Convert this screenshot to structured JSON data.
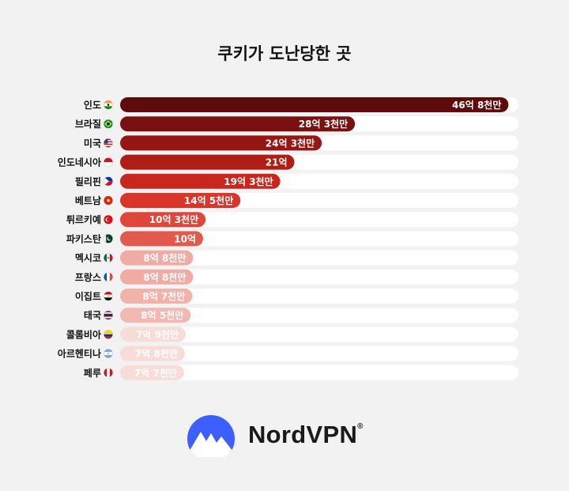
{
  "colors": {
    "track": "#ffffff",
    "background": "#f2f2f2",
    "label_light": "#ffffff",
    "brand_blue": "#3e5fff"
  },
  "chart_data": {
    "type": "bar",
    "orientation": "horizontal",
    "title": "쿠키가 도난당한 곳",
    "unit": "억",
    "xlim": [
      0,
      48
    ],
    "categories": [
      "인도",
      "브라질",
      "미국",
      "인도네시아",
      "필리핀",
      "베트남",
      "튀르키예",
      "파키스탄",
      "멕시코",
      "프랑스",
      "이집트",
      "태국",
      "콜롬비아",
      "아르헨티나",
      "페루"
    ],
    "values": [
      46.8,
      28.3,
      24.3,
      21,
      19.3,
      14.5,
      10.3,
      10,
      8.8,
      8.8,
      8.7,
      8.5,
      7.9,
      7.8,
      7.7
    ],
    "data_labels": [
      "46억 8천만",
      "28억 3천만",
      "24억 3천만",
      "21억",
      "19억 3천만",
      "14억 5천만",
      "10억 3천만",
      "10억",
      "8억 8천만",
      "8억 8천만",
      "8억 7천만",
      "8억 5천만",
      "7억 9천만",
      "7억 8천만",
      "7억 7천만"
    ],
    "bar_colors": [
      "#5e0b0b",
      "#7a1010",
      "#951613",
      "#b01d17",
      "#c9261d",
      "#d9352a",
      "#e0473b",
      "#e25a4d",
      "#f0aca4",
      "#f0aca4",
      "#f2b2aa",
      "#f2b8b1",
      "#f8dcd8",
      "#f8dcd8",
      "#f8dcd8"
    ],
    "flags": [
      "india-flag-icon",
      "brazil-flag-icon",
      "usa-flag-icon",
      "indonesia-flag-icon",
      "philippines-flag-icon",
      "vietnam-flag-icon",
      "turkey-flag-icon",
      "pakistan-flag-icon",
      "mexico-flag-icon",
      "france-flag-icon",
      "egypt-flag-icon",
      "thailand-flag-icon",
      "colombia-flag-icon",
      "argentina-flag-icon",
      "peru-flag-icon"
    ],
    "grid": false,
    "legend": "none"
  },
  "brand": {
    "name": "NordVPN",
    "mark": "®"
  }
}
